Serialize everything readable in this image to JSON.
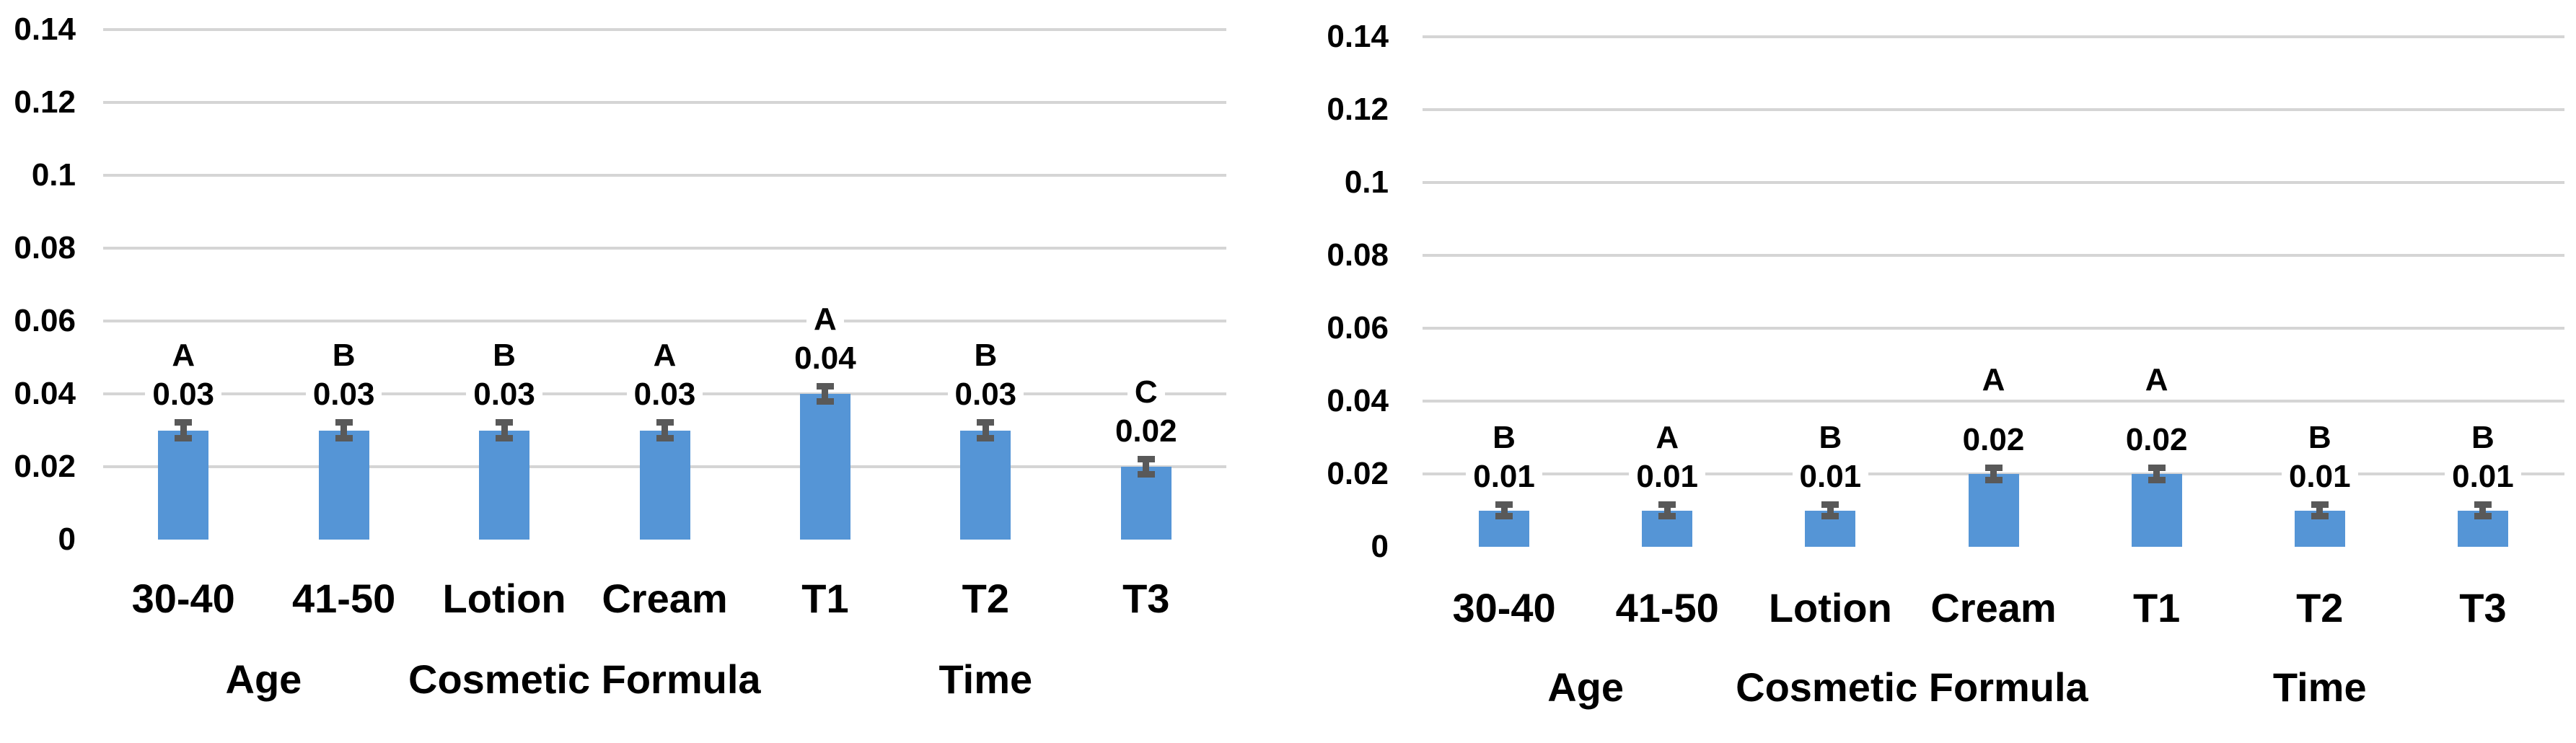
{
  "figure": {
    "background": "#ffffff",
    "text_color": "#000000"
  },
  "chart_data": [
    {
      "type": "bar",
      "position": "left",
      "categories": [
        "30-40",
        "41-50",
        "Lotion",
        "Cream",
        "T1",
        "T2",
        "T3"
      ],
      "values": [
        0.03,
        0.03,
        0.03,
        0.03,
        0.04,
        0.03,
        0.02
      ],
      "value_labels": [
        "0.03",
        "0.03",
        "0.03",
        "0.03",
        "0.04",
        "0.03",
        "0.02"
      ],
      "significance_letters": [
        "A",
        "B",
        "B",
        "A",
        "A",
        "B",
        "C"
      ],
      "error_bars": [
        0.003,
        0.003,
        0.003,
        0.003,
        0.003,
        0.003,
        0.003
      ],
      "category_groups": [
        {
          "label": "Age",
          "start_index": 0,
          "end_index": 1
        },
        {
          "label": "Cosmetic Formula",
          "start_index": 2,
          "end_index": 3
        },
        {
          "label": "Time",
          "start_index": 4,
          "end_index": 6
        }
      ],
      "ylim": [
        0,
        0.14
      ],
      "ytick_labels": [
        "0",
        "0.02",
        "0.04",
        "0.06",
        "0.08",
        "0.1",
        "0.12",
        "0.14"
      ],
      "grid": "horizontal",
      "legend_position": "none",
      "bar_color": "#5595D6",
      "error_bar_color": "#595959",
      "gridline_color": "#D5D5D5"
    },
    {
      "type": "bar",
      "position": "right",
      "categories": [
        "30-40",
        "41-50",
        "Lotion",
        "Cream",
        "T1",
        "T2",
        "T3"
      ],
      "values": [
        0.01,
        0.01,
        0.01,
        0.02,
        0.02,
        0.01,
        0.01
      ],
      "value_labels": [
        "0.01",
        "0.01",
        "0.01",
        "0.02",
        "0.02",
        "0.01",
        "0.01"
      ],
      "significance_letters": [
        "B",
        "A",
        "B",
        "A",
        "A",
        "B",
        "B"
      ],
      "error_bars": [
        0.0025,
        0.0025,
        0.0025,
        0.0025,
        0.0025,
        0.0025,
        0.0025
      ],
      "category_groups": [
        {
          "label": "Age",
          "start_index": 0,
          "end_index": 1
        },
        {
          "label": "Cosmetic Formula",
          "start_index": 2,
          "end_index": 3
        },
        {
          "label": "Time",
          "start_index": 4,
          "end_index": 6
        }
      ],
      "ylim": [
        0,
        0.14
      ],
      "ytick_labels": [
        "0",
        "0.02",
        "0.04",
        "0.06",
        "0.08",
        "0.1",
        "0.12",
        "0.14"
      ],
      "grid": "horizontal",
      "legend_position": "none",
      "bar_color": "#5595D6",
      "error_bar_color": "#595959",
      "gridline_color": "#D5D5D5"
    }
  ]
}
